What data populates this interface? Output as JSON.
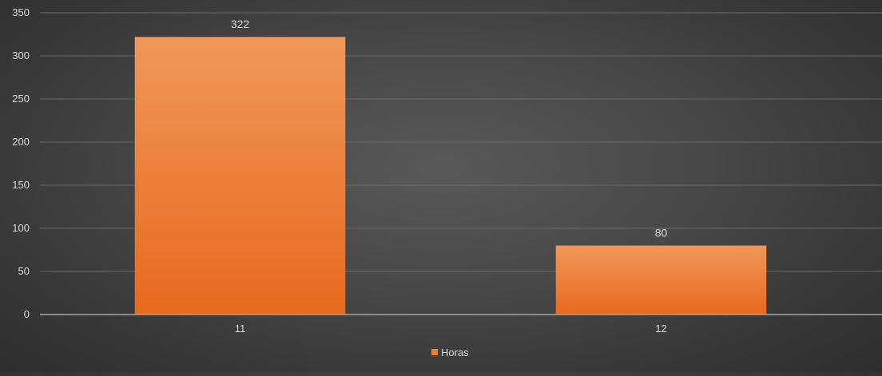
{
  "chart_data": {
    "type": "bar",
    "title": "",
    "xlabel": "",
    "ylabel": "",
    "categories": [
      "11",
      "12"
    ],
    "series": [
      {
        "name": "Horas",
        "values": [
          322,
          80
        ]
      }
    ],
    "ylim": [
      0,
      350
    ],
    "yticks": [
      "0",
      "50",
      "100",
      "150",
      "200",
      "250",
      "300",
      "350"
    ],
    "data_labels": [
      "322",
      "80"
    ],
    "grid": true,
    "legend_position": "bottom",
    "colors": {
      "bar_top": "#f0975a",
      "bar_bottom": "#e8691c",
      "legend_swatch": "#f07e2c",
      "text": "#d9d9d9",
      "gridline": "#6a6a6a",
      "axis": "#a6a6a6"
    }
  }
}
